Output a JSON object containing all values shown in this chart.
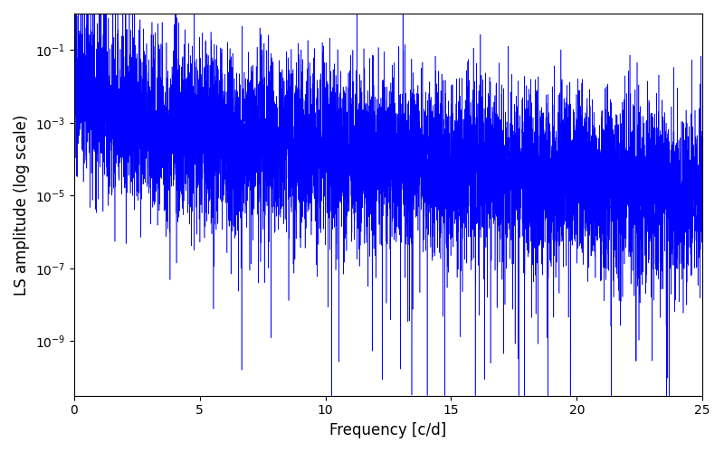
{
  "xlabel": "Frequency [c/d]",
  "ylabel": "LS amplitude (log scale)",
  "xlim": [
    0,
    25
  ],
  "ylim_log": [
    -10.5,
    0
  ],
  "line_color": "#0000ff",
  "linewidth": 0.4,
  "background_color": "#ffffff",
  "figsize": [
    8.0,
    5.0
  ],
  "dpi": 100,
  "seed": 12345,
  "n_points": 8000,
  "freq_max": 25.0,
  "base_log_at_0": -3.0,
  "base_log_at_max": -5.0,
  "noise_std": 1.2,
  "n_big_spikes": 40,
  "n_deep_dips": 60
}
